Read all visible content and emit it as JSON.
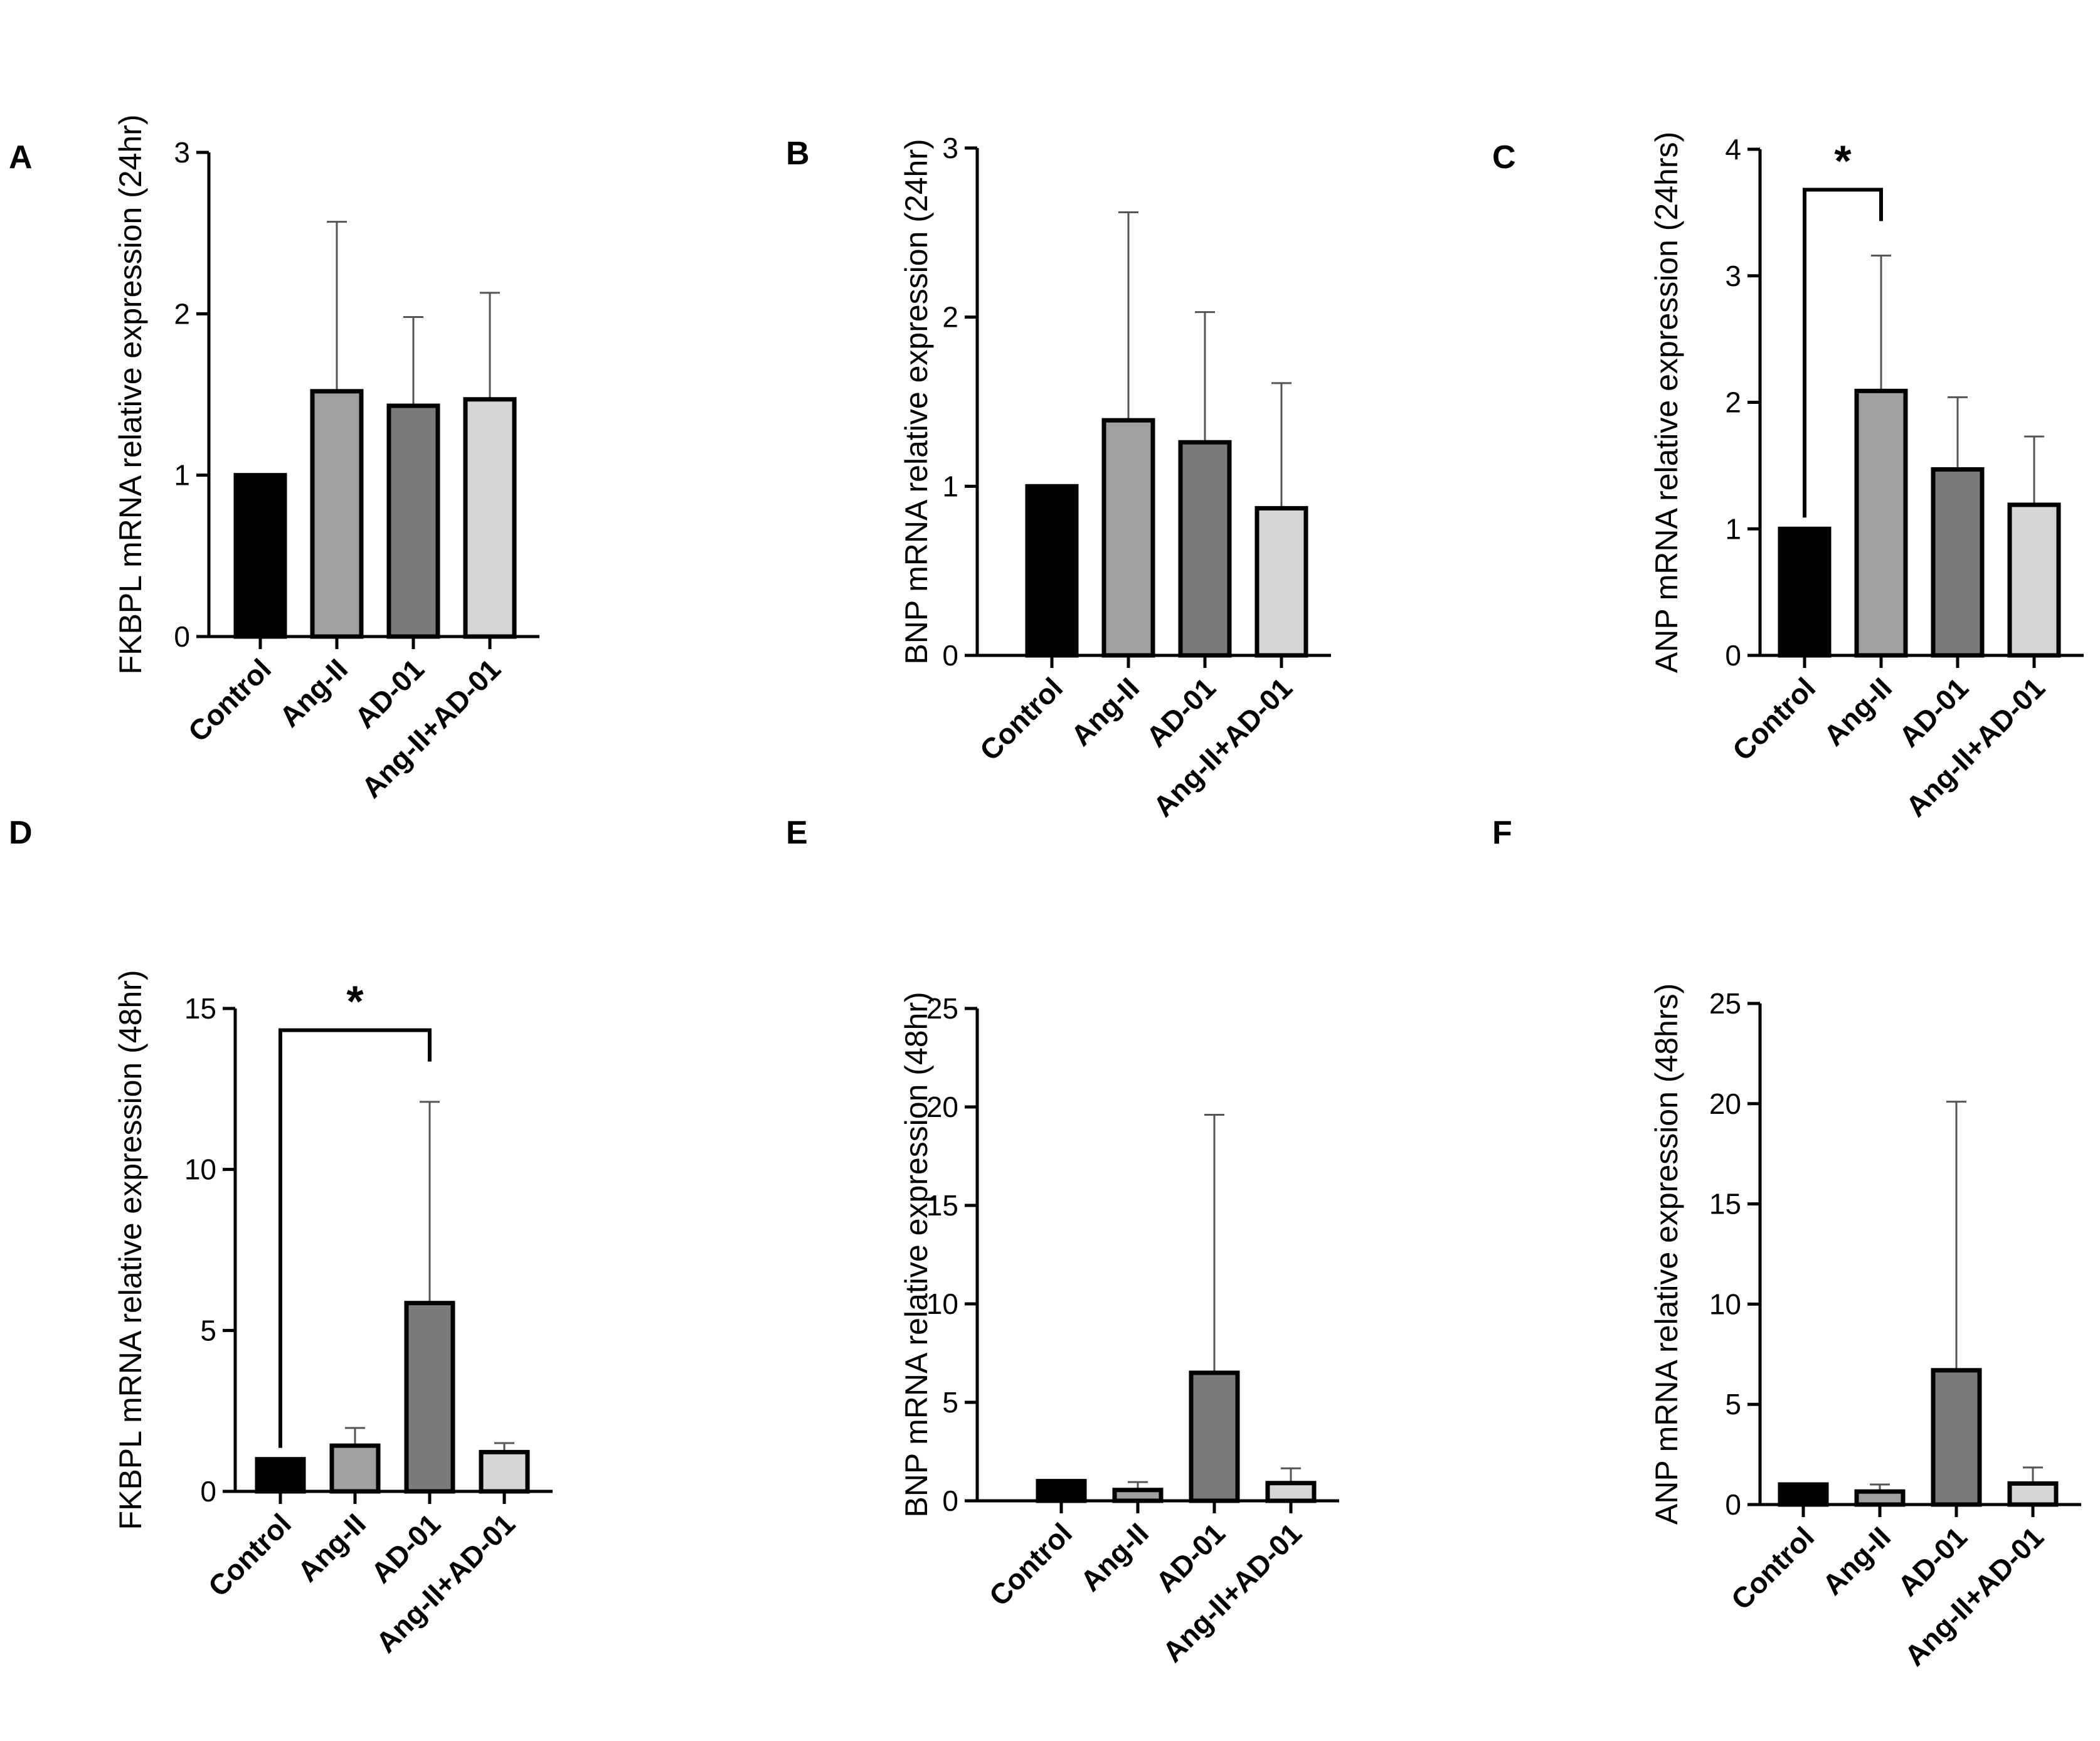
{
  "figure": {
    "panel_letters": [
      "A",
      "B",
      "C",
      "D",
      "E",
      "F"
    ]
  },
  "bar_colors": {
    "Control": "#000000",
    "Ang-II": "#a0a0a3",
    "AD-01": "#7a7a7a",
    "Ang-II+AD-01": "#d6d6d6"
  },
  "chart_data": [
    {
      "panel": "A",
      "type": "bar",
      "ylabel": "FKBPL  mRNA relative expression (24hr)",
      "categories": [
        "Control",
        "Ang-II",
        "AD-01",
        "Ang-II+AD-01"
      ],
      "values": [
        1.0,
        1.52,
        1.43,
        1.47
      ],
      "error_upper": [
        1.0,
        2.57,
        1.98,
        2.13
      ],
      "ylim": [
        0,
        3
      ],
      "yticks": [
        0,
        1,
        2,
        3
      ],
      "significance": []
    },
    {
      "panel": "B",
      "type": "bar",
      "ylabel": "BNP mRNA relative expression (24hr)",
      "categories": [
        "Control",
        "Ang-II",
        "AD-01",
        "Ang-II+AD-01"
      ],
      "values": [
        1.0,
        1.39,
        1.26,
        0.87
      ],
      "error_upper": [
        1.0,
        2.62,
        2.03,
        1.61
      ],
      "ylim": [
        0,
        3
      ],
      "yticks": [
        0,
        1,
        2,
        3
      ],
      "significance": []
    },
    {
      "panel": "C",
      "type": "bar",
      "ylabel": "ANP  mRNA relative expression (24hrs)",
      "categories": [
        "Control",
        "Ang-II",
        "AD-01",
        "Ang-II+AD-01"
      ],
      "values": [
        1.0,
        2.09,
        1.47,
        1.19
      ],
      "error_upper": [
        1.0,
        3.16,
        2.04,
        1.73
      ],
      "ylim": [
        0,
        4
      ],
      "yticks": [
        0,
        1,
        2,
        3,
        4
      ],
      "significance": [
        {
          "from": "Control",
          "to": "Ang-II",
          "label": "*"
        }
      ]
    },
    {
      "panel": "D",
      "type": "bar",
      "ylabel": "FKBPL  mRNA relative expression (48hr)",
      "categories": [
        "Control",
        "Ang-II",
        "AD-01",
        "Ang-II+AD-01"
      ],
      "values": [
        1.0,
        1.42,
        5.85,
        1.22
      ],
      "error_upper": [
        1.0,
        1.97,
        12.1,
        1.5
      ],
      "ylim": [
        0,
        15
      ],
      "yticks": [
        0,
        5,
        10,
        15
      ],
      "significance": [
        {
          "from": "Control",
          "to": "AD-01",
          "label": "*"
        }
      ]
    },
    {
      "panel": "E",
      "type": "bar",
      "ylabel": "BNP mRNA relative expression (48hr)",
      "categories": [
        "Control",
        "Ang-II",
        "AD-01",
        "Ang-II+AD-01"
      ],
      "values": [
        1.0,
        0.55,
        6.5,
        0.9
      ],
      "error_upper": [
        1.0,
        0.95,
        19.6,
        1.65
      ],
      "ylim": [
        0,
        25
      ],
      "yticks": [
        0,
        5,
        10,
        15,
        20,
        25
      ],
      "significance": []
    },
    {
      "panel": "F",
      "type": "bar",
      "ylabel": "ANP mRNA relative expression (48hrs)",
      "categories": [
        "Control",
        "Ang-II",
        "AD-01",
        "Ang-II+AD-01"
      ],
      "values": [
        1.0,
        0.65,
        6.7,
        1.05
      ],
      "error_upper": [
        1.0,
        1.0,
        20.1,
        1.85
      ],
      "ylim": [
        0,
        25
      ],
      "yticks": [
        0,
        5,
        10,
        15,
        20,
        25
      ],
      "significance": []
    }
  ]
}
